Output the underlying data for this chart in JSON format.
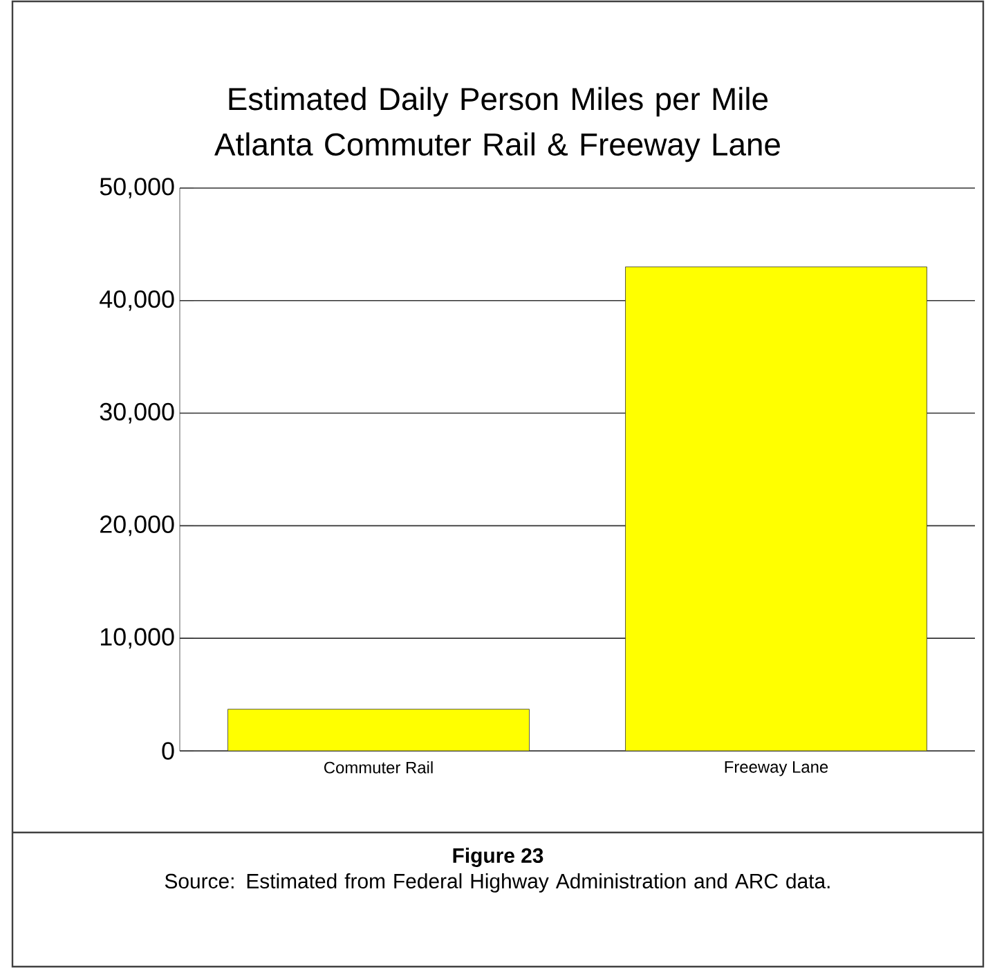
{
  "chart_data": {
    "type": "bar",
    "title": "Estimated Daily Person Miles per Mile Atlanta Commuter Rail & Freeway Lane",
    "categories": [
      "Commuter Rail",
      "Freeway Lane"
    ],
    "values": [
      3700,
      43000
    ],
    "color": "#ffff00",
    "ylim": [
      0,
      50000
    ],
    "yticks": [
      0,
      {
        "value": 10000,
        "label": "10,000"
      },
      {
        "value": 20000,
        "label": "20,000"
      },
      {
        "value": 30000,
        "label": "30,000"
      },
      {
        "value": 40000,
        "label": "40,000"
      },
      {
        "value": 50000,
        "label": "50,000"
      }
    ],
    "grid": "y",
    "annotations": [
      "Figure 23",
      "Source: Estimated from Federal Highway Administration and ARC data."
    ]
  }
}
